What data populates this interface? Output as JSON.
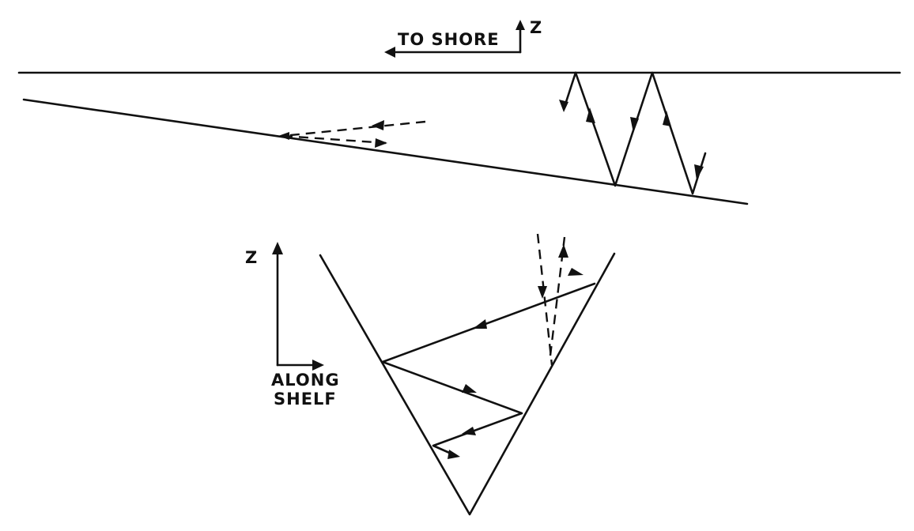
{
  "labels": {
    "to_shore": "TO SHORE",
    "z_top": "Z",
    "z_bottom": "Z",
    "along_line1": "ALONG",
    "along_line2": "SHELF"
  },
  "colors": {
    "ink": "#111111",
    "background": "#ffffff"
  }
}
